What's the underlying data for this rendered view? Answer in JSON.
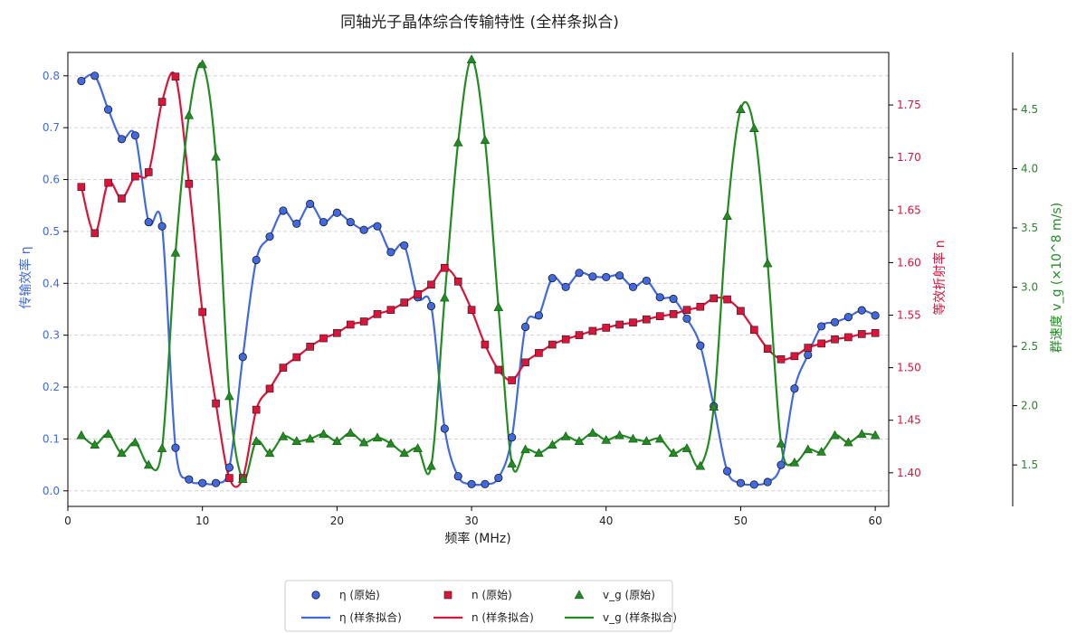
{
  "chart_data": {
    "type": "line",
    "title": "同轴光子晶体综合传输特性 (全样条拟合)",
    "xlabel": "频率 (MHz)",
    "xlim": [
      0,
      61
    ],
    "xticks": [
      0,
      10,
      20,
      30,
      40,
      50,
      60
    ],
    "grid": "horizontal dashed",
    "legend_position": "bottom-center",
    "x": [
      1,
      2,
      3,
      4,
      5,
      6,
      7,
      8,
      9,
      10,
      11,
      12,
      13,
      14,
      15,
      16,
      17,
      18,
      19,
      20,
      21,
      22,
      23,
      24,
      25,
      26,
      27,
      28,
      29,
      30,
      31,
      32,
      33,
      34,
      35,
      36,
      37,
      38,
      39,
      40,
      41,
      42,
      43,
      44,
      45,
      46,
      47,
      48,
      49,
      50,
      51,
      52,
      53,
      54,
      55,
      56,
      57,
      58,
      59,
      60
    ],
    "series": [
      {
        "key": "eta",
        "ylabel": "传输效率 η",
        "axis": "left",
        "ylim": [
          -0.03,
          0.845
        ],
        "yticks": [
          0.0,
          0.1,
          0.2,
          0.3,
          0.4,
          0.5,
          0.6,
          0.7,
          0.8
        ],
        "tick_decimals": 1,
        "color": "#4169e1",
        "marker": "circle",
        "legend_raw": "η (原始)",
        "legend_fit": "η (样条拟合)",
        "values": [
          0.79,
          0.8,
          0.735,
          0.678,
          0.685,
          0.518,
          0.51,
          0.083,
          0.022,
          0.015,
          0.015,
          0.045,
          0.258,
          0.445,
          0.49,
          0.54,
          0.515,
          0.553,
          0.518,
          0.536,
          0.518,
          0.503,
          0.51,
          0.46,
          0.473,
          0.373,
          0.356,
          0.12,
          0.028,
          0.013,
          0.013,
          0.025,
          0.103,
          0.316,
          0.338,
          0.41,
          0.393,
          0.42,
          0.413,
          0.412,
          0.415,
          0.393,
          0.405,
          0.373,
          0.37,
          0.332,
          0.28,
          0.163,
          0.038,
          0.015,
          0.012,
          0.017,
          0.05,
          0.197,
          0.262,
          0.317,
          0.325,
          0.335,
          0.348,
          0.338
        ]
      },
      {
        "key": "n",
        "ylabel": "等效折射率 n",
        "axis": "right",
        "ylim": [
          1.368,
          1.8
        ],
        "yticks": [
          1.4,
          1.45,
          1.5,
          1.55,
          1.6,
          1.65,
          1.7,
          1.75
        ],
        "tick_decimals": 2,
        "color": "#dc143c",
        "marker": "square",
        "legend_raw": "n (原始)",
        "legend_fit": "n (样条拟合)",
        "values": [
          1.672,
          1.628,
          1.676,
          1.661,
          1.682,
          1.686,
          1.753,
          1.777,
          1.675,
          1.553,
          1.466,
          1.395,
          1.395,
          1.46,
          1.48,
          1.5,
          1.51,
          1.52,
          1.528,
          1.533,
          1.541,
          1.544,
          1.551,
          1.555,
          1.562,
          1.57,
          1.579,
          1.595,
          1.582,
          1.555,
          1.522,
          1.498,
          1.488,
          1.505,
          1.514,
          1.522,
          1.527,
          1.531,
          1.535,
          1.538,
          1.541,
          1.543,
          1.546,
          1.549,
          1.551,
          1.555,
          1.558,
          1.566,
          1.565,
          1.554,
          1.536,
          1.518,
          1.508,
          1.511,
          1.519,
          1.523,
          1.527,
          1.529,
          1.532,
          1.533
        ]
      },
      {
        "key": "vg",
        "ylabel": "群速度 v_g (×10^8 m/s)",
        "axis": "far-right",
        "ylim": [
          1.15,
          4.98
        ],
        "yticks": [
          1.5,
          2.0,
          2.5,
          3.0,
          3.5,
          4.0,
          4.5
        ],
        "tick_decimals": 1,
        "color": "#228b22",
        "marker": "triangle",
        "legend_raw": "v_g (原始)",
        "legend_fit": "v_g (样条拟合)",
        "values": [
          1.75,
          1.67,
          1.76,
          1.6,
          1.69,
          1.5,
          1.64,
          3.29,
          4.45,
          4.88,
          4.1,
          2.08,
          1.38,
          1.7,
          1.6,
          1.74,
          1.7,
          1.72,
          1.76,
          1.7,
          1.77,
          1.69,
          1.73,
          1.68,
          1.6,
          1.64,
          1.49,
          2.91,
          4.22,
          4.92,
          4.24,
          2.83,
          1.51,
          1.63,
          1.6,
          1.67,
          1.74,
          1.7,
          1.77,
          1.71,
          1.75,
          1.72,
          1.7,
          1.72,
          1.6,
          1.64,
          1.49,
          1.99,
          3.6,
          4.5,
          4.34,
          3.2,
          1.68,
          1.52,
          1.63,
          1.61,
          1.75,
          1.69,
          1.76,
          1.75
        ]
      }
    ]
  }
}
